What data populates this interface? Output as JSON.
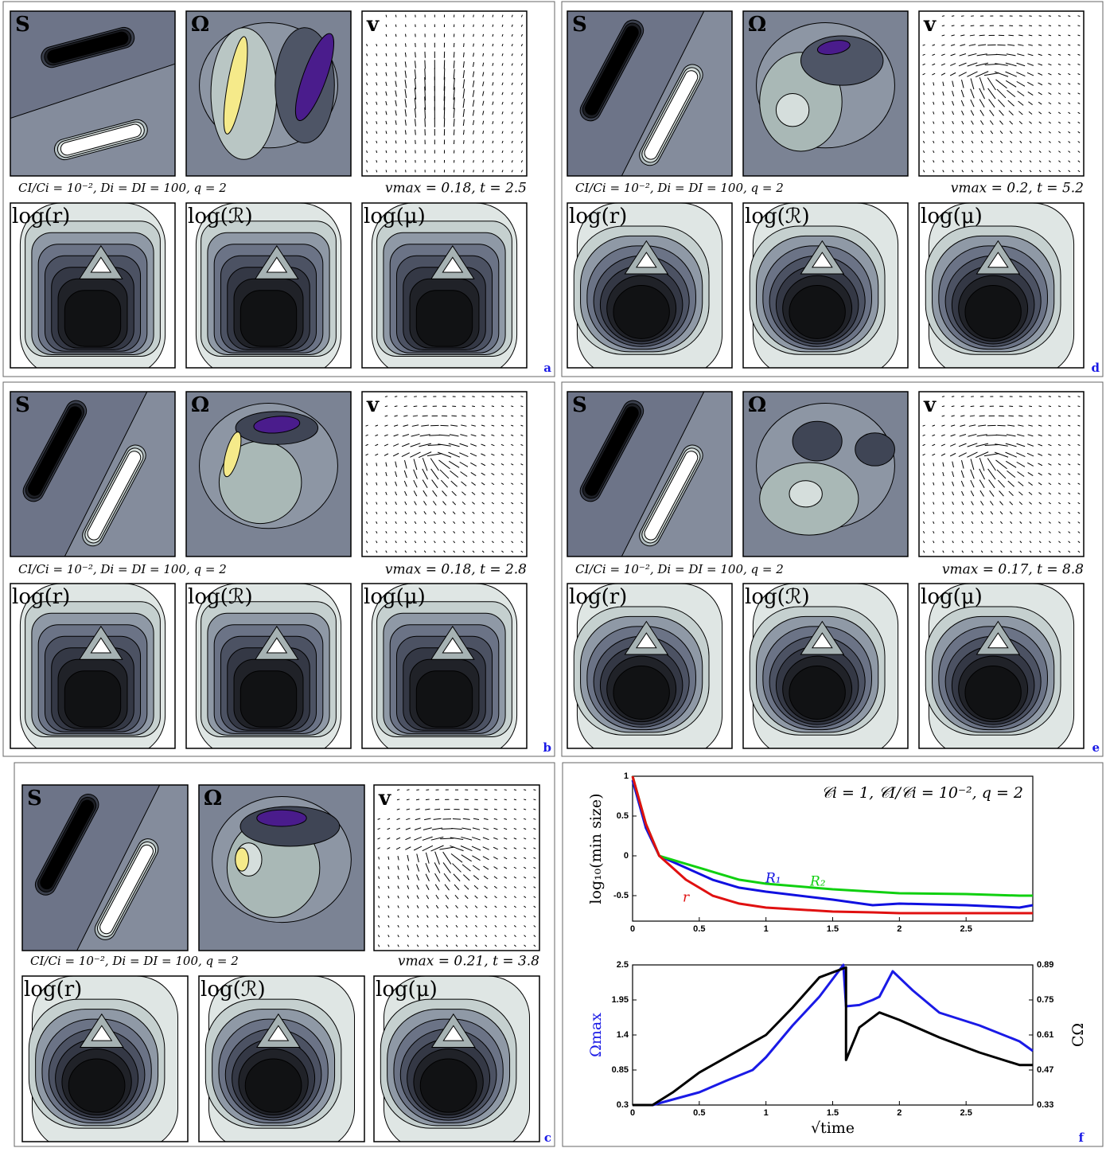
{
  "subplot_labels": [
    "S",
    "Ω",
    "v",
    "log(r)",
    "log(ℛ)",
    "log(μ)"
  ],
  "panels": [
    {
      "letter": "a",
      "params": "CI/Ci = 10⁻², Di = DI = 100, q = 2",
      "vmax": "vmax = 0.18, t = 2.5"
    },
    {
      "letter": "d",
      "params": "CI/Ci = 10⁻², Di = DI = 100, q = 2",
      "vmax": "vmax = 0.2, t = 5.2"
    },
    {
      "letter": "b",
      "params": "CI/Ci = 10⁻², Di = DI = 100, q = 2",
      "vmax": "vmax = 0.18, t = 2.8"
    },
    {
      "letter": "e",
      "params": "CI/Ci = 10⁻², Di = DI = 100, q = 2",
      "vmax": "vmax = 0.17, t = 8.8"
    },
    {
      "letter": "c",
      "params": "CI/Ci = 10⁻², Di = DI = 100, q = 2",
      "vmax": "vmax = 0.21, t = 3.8"
    }
  ],
  "panel_f_letter": "f",
  "chart_data": [
    {
      "type": "line",
      "annotation": "𝒞i = 1, 𝒞I/𝒞i = 10⁻², q = 2",
      "ylabel": "log₁₀(min size)",
      "xlim": [
        0,
        3
      ],
      "ylim": [
        -0.82,
        1
      ],
      "xticks": [
        0,
        0.5,
        1,
        1.5,
        2,
        2.5
      ],
      "yticks": [
        -0.5,
        0,
        0.5,
        1
      ],
      "series": [
        {
          "name": "R₁",
          "color": "#1010e0",
          "x": [
            0,
            0.1,
            0.2,
            0.4,
            0.6,
            0.8,
            1,
            1.5,
            1.8,
            2,
            2.5,
            2.9,
            3
          ],
          "values": [
            0.95,
            0.35,
            0,
            -0.15,
            -0.3,
            -0.4,
            -0.45,
            -0.55,
            -0.62,
            -0.6,
            -0.62,
            -0.65,
            -0.62
          ]
        },
        {
          "name": "R₂",
          "color": "#10d010",
          "x": [
            0,
            0.1,
            0.2,
            0.4,
            0.6,
            0.8,
            1,
            1.5,
            1.8,
            2,
            2.5,
            2.9,
            3
          ],
          "values": [
            1,
            0.4,
            0,
            -0.1,
            -0.2,
            -0.3,
            -0.35,
            -0.42,
            -0.45,
            -0.47,
            -0.48,
            -0.5,
            -0.5
          ]
        },
        {
          "name": "r",
          "color": "#e01010",
          "x": [
            0,
            0.1,
            0.2,
            0.4,
            0.6,
            0.8,
            1,
            1.5,
            1.8,
            2,
            2.5,
            2.9,
            3
          ],
          "values": [
            1,
            0.4,
            0,
            -0.3,
            -0.5,
            -0.6,
            -0.65,
            -0.7,
            -0.71,
            -0.72,
            -0.72,
            -0.72,
            -0.72
          ]
        }
      ]
    },
    {
      "type": "line",
      "xlabel": "√time",
      "ylabel": "Ωmax",
      "y2label": "CΩ",
      "xlim": [
        0,
        3
      ],
      "ylim": [
        0.3,
        2.5
      ],
      "y2lim": [
        0.33,
        0.89
      ],
      "xticks": [
        0,
        0.5,
        1,
        1.5,
        2,
        2.5
      ],
      "yticks": [
        0.3,
        0.85,
        1.4,
        1.95,
        2.5
      ],
      "y2ticks": [
        0.33,
        0.47,
        0.61,
        0.75,
        0.89
      ],
      "series": [
        {
          "color": "#1a1ae6",
          "x": [
            0,
            0.15,
            0.5,
            0.7,
            0.9,
            1,
            1.2,
            1.4,
            1.58,
            1.6,
            1.7,
            1.8,
            1.85,
            1.95,
            2.1,
            2.3,
            2.6,
            2.9,
            3
          ],
          "values": [
            0.3,
            0.3,
            0.5,
            0.68,
            0.85,
            1.05,
            1.55,
            2.0,
            2.5,
            1.85,
            1.87,
            1.95,
            2.0,
            2.4,
            2.1,
            1.75,
            1.55,
            1.3,
            1.15
          ]
        },
        {
          "color": "#000000",
          "axis": "y2",
          "x": [
            0,
            0.15,
            0.3,
            0.5,
            0.7,
            0.9,
            1,
            1.2,
            1.4,
            1.6,
            1.6,
            1.7,
            1.85,
            2,
            2.3,
            2.6,
            2.9,
            3
          ],
          "values": [
            0.33,
            0.33,
            0.38,
            0.46,
            0.52,
            0.58,
            0.61,
            0.72,
            0.84,
            0.88,
            0.51,
            0.64,
            0.7,
            0.67,
            0.6,
            0.54,
            0.49,
            0.49
          ]
        }
      ]
    }
  ]
}
